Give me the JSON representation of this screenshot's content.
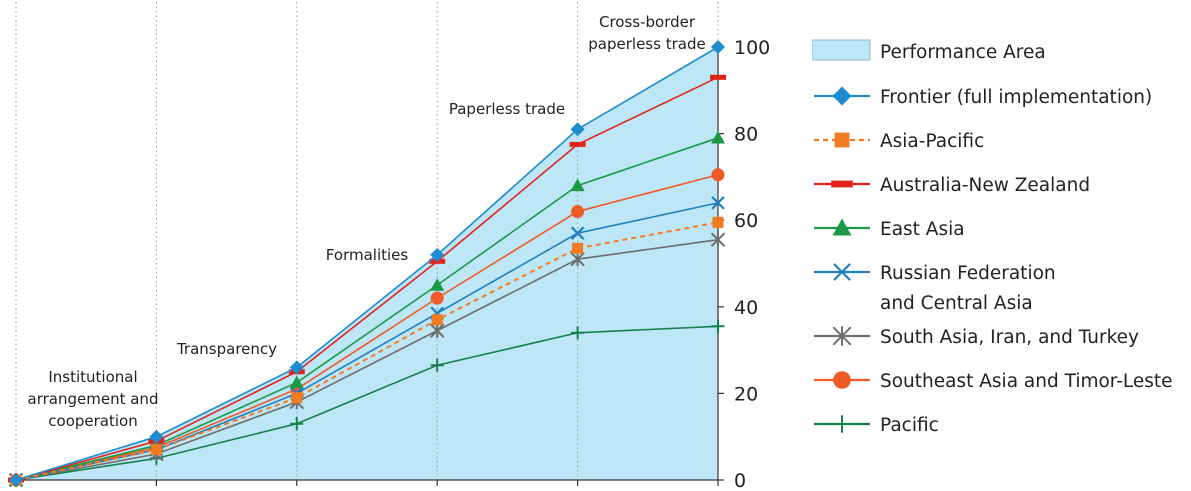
{
  "chart_data": {
    "type": "area",
    "categories": [
      "",
      "Institutional\narrangement and\ncooperation",
      "Transparency",
      "Formalities",
      "Paperless trade",
      "Cross-border\npaperless trade"
    ],
    "x": [
      0,
      1,
      2,
      3,
      4,
      5
    ],
    "ylim": [
      0,
      100
    ],
    "yticks": [
      0,
      20,
      40,
      60,
      80,
      100
    ],
    "y_axis_side": "right",
    "grid": "vertical dotted",
    "legend_position": "right",
    "series": [
      {
        "name": "Performance Area",
        "values": [
          0,
          10,
          26,
          52,
          81,
          100
        ],
        "color": "#bde6f6",
        "kind": "area"
      },
      {
        "name": "Frontier (full implementation)",
        "values": [
          0,
          10,
          26,
          52,
          81,
          100
        ],
        "color": "#1f8bd0",
        "marker": "diamond",
        "line": "solid"
      },
      {
        "name": "Asia-Pacific",
        "values": [
          0,
          7,
          19,
          37,
          53.5,
          59.5
        ],
        "color": "#f47c20",
        "marker": "square",
        "line": "dashed"
      },
      {
        "name": "Australia-New Zealand",
        "values": [
          0,
          9,
          25,
          50.5,
          77.5,
          93
        ],
        "color": "#e2231a",
        "marker": "dash",
        "line": "solid"
      },
      {
        "name": "East Asia",
        "values": [
          0,
          8,
          22.5,
          45,
          68,
          79
        ],
        "color": "#1a9a45",
        "marker": "triangle",
        "line": "solid"
      },
      {
        "name": "Russian Federation\nand Central Asia",
        "values": [
          0,
          7,
          20,
          38.5,
          57,
          64
        ],
        "color": "#1f7fc0",
        "marker": "x",
        "line": "solid"
      },
      {
        "name": "South Asia, Iran, and Turkey",
        "values": [
          0,
          6,
          18,
          34.5,
          51,
          55.5
        ],
        "color": "#6d6d6d",
        "marker": "asterisk",
        "line": "solid"
      },
      {
        "name": "Southeast Asia and Timor-Leste",
        "values": [
          0,
          7.5,
          21,
          42,
          62,
          70.5
        ],
        "color": "#ef5a28",
        "marker": "circle",
        "line": "solid"
      },
      {
        "name": "Pacific",
        "values": [
          0,
          5,
          13,
          26.5,
          34,
          35.5
        ],
        "color": "#16804a",
        "marker": "plus",
        "line": "solid"
      }
    ]
  }
}
